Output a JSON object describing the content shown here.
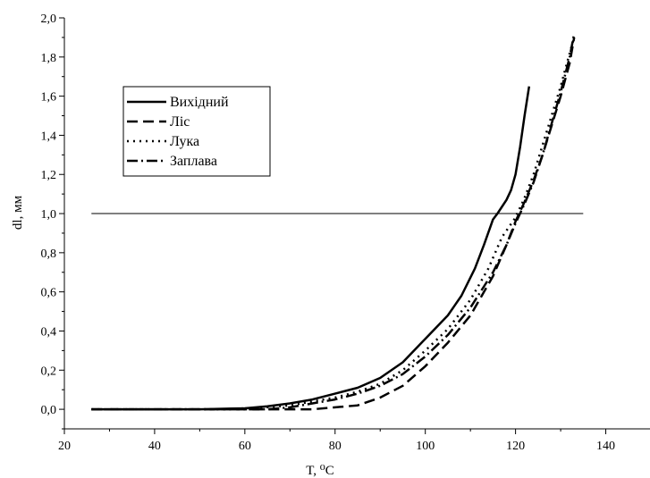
{
  "chart_data": {
    "type": "line",
    "xlabel": "T, ⁰C",
    "ylabel": "dl, мм",
    "xlim": [
      20,
      150
    ],
    "ylim": [
      -0.1,
      2.0
    ],
    "x_ticks": [
      "20",
      "40",
      "60",
      "80",
      "100",
      "120",
      "140"
    ],
    "y_ticks": [
      "0,0",
      "0,2",
      "0,4",
      "0,6",
      "0,8",
      "1,0",
      "1,2",
      "1,4",
      "1,6",
      "1,8",
      "2,0"
    ],
    "grid": false,
    "legend_position": "upper-left",
    "reference_line": {
      "y": 1.0,
      "x_range": [
        26,
        135
      ]
    },
    "series": [
      {
        "name": "Вихідний",
        "style": "solid",
        "x": [
          26,
          40,
          50,
          60,
          65,
          70,
          75,
          80,
          85,
          90,
          95,
          100,
          105,
          108,
          111,
          113,
          115,
          116,
          118,
          119,
          120,
          121,
          122,
          123
        ],
        "y": [
          0.0,
          0.0,
          0.0,
          0.005,
          0.015,
          0.03,
          0.05,
          0.08,
          0.11,
          0.16,
          0.24,
          0.36,
          0.48,
          0.58,
          0.72,
          0.84,
          0.97,
          1.0,
          1.07,
          1.12,
          1.2,
          1.34,
          1.5,
          1.65
        ]
      },
      {
        "name": "Ліс",
        "style": "dashed",
        "x": [
          26,
          40,
          55,
          65,
          75,
          85,
          90,
          95,
          100,
          105,
          110,
          115,
          118,
          120,
          122,
          124,
          126,
          128,
          130,
          132,
          133
        ],
        "y": [
          0.0,
          0.0,
          0.0,
          0.0,
          0.0,
          0.02,
          0.06,
          0.12,
          0.22,
          0.34,
          0.48,
          0.68,
          0.84,
          0.96,
          1.06,
          1.17,
          1.3,
          1.45,
          1.6,
          1.77,
          1.9
        ]
      },
      {
        "name": "Лука",
        "style": "dotted",
        "x": [
          26,
          40,
          55,
          65,
          70,
          75,
          80,
          85,
          90,
          95,
          100,
          105,
          110,
          114,
          117,
          120,
          122,
          124,
          126,
          128,
          130,
          132,
          133
        ],
        "y": [
          0.0,
          0.0,
          0.0,
          0.01,
          0.02,
          0.04,
          0.06,
          0.09,
          0.13,
          0.2,
          0.3,
          0.41,
          0.56,
          0.72,
          0.88,
          0.98,
          1.08,
          1.2,
          1.35,
          1.5,
          1.65,
          1.82,
          1.9
        ]
      },
      {
        "name": "Заплава",
        "style": "dash-dot",
        "x": [
          26,
          40,
          55,
          65,
          70,
          75,
          80,
          85,
          90,
          95,
          100,
          105,
          110,
          115,
          118,
          120,
          122,
          124,
          126,
          128,
          130,
          132,
          133
        ],
        "y": [
          0.0,
          0.0,
          0.0,
          0.0,
          0.01,
          0.03,
          0.05,
          0.08,
          0.12,
          0.18,
          0.27,
          0.38,
          0.52,
          0.7,
          0.84,
          0.95,
          1.05,
          1.16,
          1.3,
          1.46,
          1.62,
          1.8,
          1.92
        ]
      }
    ]
  },
  "colors": {
    "line": "#000000",
    "background": "#ffffff"
  }
}
